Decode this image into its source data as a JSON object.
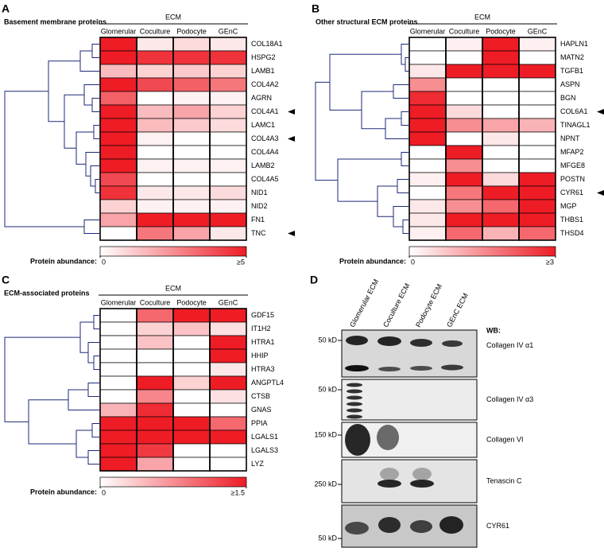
{
  "panels": [
    {
      "letter": "A",
      "title": "Basement membrane proteins",
      "group": "ECM",
      "columns": [
        "Glomerular",
        "Coculture",
        "Podocyte",
        "GEnC"
      ],
      "rows": [
        "COL18A1",
        "HSPG2",
        "LAMB1",
        "COL4A2",
        "AGRN",
        "COL4A1",
        "LAMC1",
        "COL4A3",
        "COL4A4",
        "LAMB2",
        "COL4A5",
        "NID1",
        "NID2",
        "FN1",
        "TNC"
      ],
      "values": [
        [
          5,
          0.5,
          0.8,
          0.5
        ],
        [
          5,
          4.5,
          4.5,
          4.5
        ],
        [
          1.5,
          1,
          1.2,
          1
        ],
        [
          5,
          4,
          3.5,
          3
        ],
        [
          3.5,
          0,
          0.3,
          0.3
        ],
        [
          5,
          1.5,
          2,
          1
        ],
        [
          5,
          1.5,
          1.2,
          0.8
        ],
        [
          5,
          0.3,
          0,
          0
        ],
        [
          5,
          0,
          0,
          0
        ],
        [
          5,
          0.3,
          0.3,
          0.3
        ],
        [
          4,
          0,
          0,
          0
        ],
        [
          4.5,
          0.5,
          0.5,
          0.8
        ],
        [
          1,
          0.3,
          0.3,
          0.3
        ],
        [
          2,
          5,
          5,
          5
        ],
        [
          0,
          3,
          2,
          0.5
        ]
      ],
      "legend_label": "Protein abundance:",
      "scale": [
        0,
        {
          "value": 5,
          "label": "≥5"
        }
      ]
    },
    {
      "letter": "B",
      "title": "Other structural ECM proteins",
      "group": "ECM",
      "columns": [
        "Glomerular",
        "Coculture",
        "Podocyte",
        "GEnC"
      ],
      "rows": [
        "HAPLN1",
        "MATN2",
        "TGFB1",
        "ASPN",
        "BGN",
        "COL6A1",
        "TINAGL1",
        "NPNT",
        "MFAP2",
        "MFGE8",
        "POSTN",
        "CYR61",
        "MGP",
        "THBS1",
        "THSD4"
      ],
      "values": [
        [
          0,
          0.2,
          3,
          0.2
        ],
        [
          0,
          0,
          3,
          0
        ],
        [
          0.3,
          3,
          3,
          3
        ],
        [
          1.5,
          0,
          0,
          0
        ],
        [
          2.8,
          0,
          0,
          0
        ],
        [
          3,
          0.5,
          0,
          0
        ],
        [
          3,
          1.5,
          1.2,
          1
        ],
        [
          3,
          0,
          0.3,
          0
        ],
        [
          0,
          3,
          0,
          0
        ],
        [
          0,
          1.5,
          0,
          0
        ],
        [
          0.2,
          3,
          0.5,
          3
        ],
        [
          0,
          1.8,
          3,
          3
        ],
        [
          0.3,
          1.5,
          2,
          3
        ],
        [
          0.3,
          3,
          3,
          3
        ],
        [
          0.2,
          2,
          1,
          2
        ]
      ],
      "legend_label": "Protein abundance:",
      "scale": [
        0,
        {
          "value": 3,
          "label": "≥3"
        }
      ]
    },
    {
      "letter": "C",
      "title": "ECM-associated proteins",
      "group": "ECM",
      "columns": [
        "Glomerular",
        "Coculture",
        "Podocyte",
        "GEnC"
      ],
      "rows": [
        "GDF15",
        "IT1H2",
        "HTRA1",
        "HHIP",
        "HTRA3",
        "ANGPTL4",
        "CTSB",
        "GNAS",
        "PPIA",
        "LGALS1",
        "LGALS3",
        "LYZ"
      ],
      "values": [
        [
          0,
          1,
          1.5,
          1.5
        ],
        [
          0,
          0.3,
          0.4,
          0.2
        ],
        [
          0,
          0.4,
          0,
          1.5
        ],
        [
          0,
          0,
          0,
          1.5
        ],
        [
          0,
          0,
          0,
          0.15
        ],
        [
          0,
          1.5,
          0.3,
          1.5
        ],
        [
          0,
          0.8,
          0,
          0.2
        ],
        [
          0.5,
          1.4,
          0,
          0
        ],
        [
          1.5,
          1.5,
          1.5,
          1
        ],
        [
          1.5,
          1.5,
          1.5,
          1.5
        ],
        [
          1.5,
          1.3,
          0,
          0
        ],
        [
          1.5,
          0.6,
          0,
          0
        ]
      ],
      "legend_label": "Protein abundance:",
      "scale": [
        0,
        {
          "value": 1.5,
          "label": "≥1.5"
        }
      ]
    }
  ],
  "blot": {
    "letter": "D",
    "lanes": [
      "Glomerular ECM",
      "Coculture ECM",
      "Podocyte ECM",
      "GEnC ECM"
    ],
    "wb": "WB:",
    "rows": [
      {
        "marker": "50 kD",
        "label": "Collagen IV α1"
      },
      {
        "marker": "50 kD",
        "label": "Collagen IV α3"
      },
      {
        "marker": "150 kD",
        "label": "Collagen VI"
      },
      {
        "marker": "250 kD",
        "label": "Tenascin C"
      },
      {
        "marker": "50 kD",
        "label": "CYR61"
      }
    ]
  }
}
